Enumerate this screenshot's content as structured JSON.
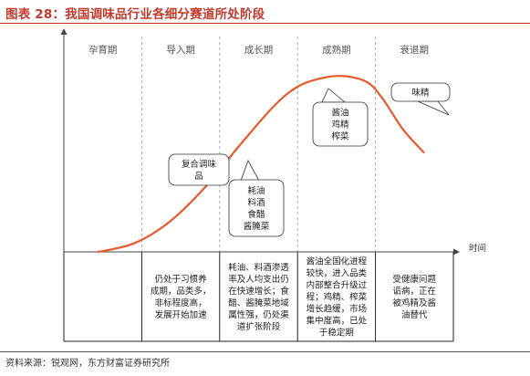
{
  "figure": {
    "title": "图表 28：我国调味品行业各细分赛道所处阶段",
    "source": "资料来源：锐观网，东方财富证券研究所"
  },
  "chart_data": {
    "type": "line",
    "title": "图表 28：我国调味品行业各细分赛道所处阶段",
    "xlabel": "时间",
    "ylabel": "",
    "grid": false,
    "stages": [
      "孕育期",
      "导入期",
      "成长期",
      "成熟期",
      "衰退期"
    ],
    "series": [
      {
        "values": [
          {
            "x": 0.44,
            "y": 0.0
          },
          {
            "x": 0.9,
            "y": 0.04
          },
          {
            "x": 1.35,
            "y": 0.14
          },
          {
            "x": 1.8,
            "y": 0.3
          },
          {
            "x": 2.25,
            "y": 0.5
          },
          {
            "x": 2.7,
            "y": 0.69
          },
          {
            "x": 3.0,
            "y": 0.78
          },
          {
            "x": 3.3,
            "y": 0.82
          },
          {
            "x": 3.6,
            "y": 0.83
          },
          {
            "x": 3.9,
            "y": 0.8
          },
          {
            "x": 4.1,
            "y": 0.72
          },
          {
            "x": 4.35,
            "y": 0.58
          },
          {
            "x": 4.62,
            "y": 0.47
          }
        ]
      }
    ],
    "annotations": [
      {
        "lines": [
          "复合调味",
          "品"
        ],
        "x": 1.95,
        "y": 0.36
      },
      {
        "lines": [
          "耗油",
          "料酒",
          "食醋",
          "酱腌菜"
        ],
        "x": 2.22,
        "y": 0.45
      },
      {
        "lines": [
          "酱油",
          "鸡精",
          "榨菜"
        ],
        "x": 3.25,
        "y": 0.78
      },
      {
        "lines": [
          "味精"
        ],
        "x": 4.2,
        "y": 0.67
      }
    ],
    "stage_descriptions": [
      {
        "stage": "孕育期",
        "lines": []
      },
      {
        "stage": "导入期",
        "lines": [
          "仍处于习惯养",
          "成期，品类多，",
          "非标程度高，",
          "发展开始加速"
        ]
      },
      {
        "stage": "成长期",
        "lines": [
          "耗油、料酒渗透",
          "率及人均支出仍",
          "在快速增长；食",
          "醋、酱腌菜地域",
          "属性强，仍处渠",
          "道扩张阶段"
        ]
      },
      {
        "stage": "成熟期",
        "lines": [
          "酱油全国化进程",
          "较快，进入品类",
          "内部整合升级过",
          "程；鸡精、榨菜",
          "增长趋缓，市场",
          "集中度高，已处",
          "于稳定期"
        ]
      },
      {
        "stage": "衰退期",
        "lines": [
          "受健康问题",
          "诟病，正在",
          "被鸡精及酱",
          "油替代"
        ]
      }
    ]
  },
  "colors": {
    "curve": "#e8592c",
    "title": "#c0392b",
    "axis": "#444444",
    "divider": "#999999",
    "bubble_border": "#333333"
  }
}
